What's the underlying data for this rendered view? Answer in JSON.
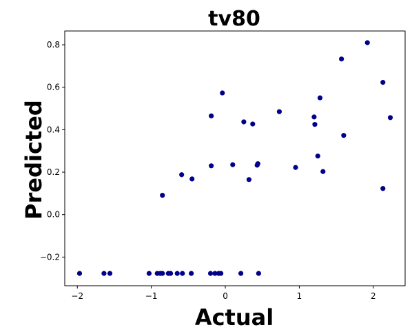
{
  "chart_data": {
    "type": "scatter",
    "title": "tv80",
    "xlabel": "Actual",
    "ylabel": "Predicted",
    "xlim": [
      -2.17,
      2.43
    ],
    "ylim": [
      -0.335,
      0.865
    ],
    "xticks": [
      -2,
      -1,
      0,
      1,
      2
    ],
    "yticks": [
      -0.2,
      0.0,
      0.2,
      0.4,
      0.6,
      0.8
    ],
    "xtick_labels": [
      "−2",
      "−1",
      "0",
      "1",
      "2"
    ],
    "ytick_labels": [
      "−0.2",
      "0.0",
      "0.2",
      "0.4",
      "0.6",
      "0.8"
    ],
    "grid": false,
    "legend": "none",
    "point_color": "#00008b",
    "series": [
      {
        "x": [
          -1.97,
          -1.64,
          -1.56,
          -1.03,
          -0.92,
          -0.88,
          -0.85,
          -0.77,
          -0.74,
          -0.65,
          -0.58,
          -0.46,
          -0.2,
          -0.14,
          -0.09,
          -0.06,
          0.21,
          0.45,
          -0.85,
          -0.59,
          -0.45,
          -0.19,
          -0.19,
          -0.04,
          0.1,
          0.25,
          0.32,
          0.37,
          0.43,
          0.44,
          0.73,
          0.95,
          1.2,
          1.21,
          1.25,
          1.28,
          1.32,
          1.57,
          1.6,
          1.92,
          2.13,
          2.13,
          2.23
        ],
        "y": [
          -0.277,
          -0.277,
          -0.277,
          -0.277,
          -0.277,
          -0.277,
          -0.277,
          -0.277,
          -0.277,
          -0.277,
          -0.277,
          -0.277,
          -0.277,
          -0.277,
          -0.277,
          -0.277,
          -0.277,
          -0.277,
          0.091,
          0.188,
          0.168,
          0.465,
          0.23,
          0.573,
          0.235,
          0.437,
          0.165,
          0.427,
          0.233,
          0.24,
          0.485,
          0.222,
          0.46,
          0.425,
          0.276,
          0.55,
          0.203,
          0.733,
          0.373,
          0.81,
          0.623,
          0.123,
          0.457
        ]
      }
    ]
  }
}
